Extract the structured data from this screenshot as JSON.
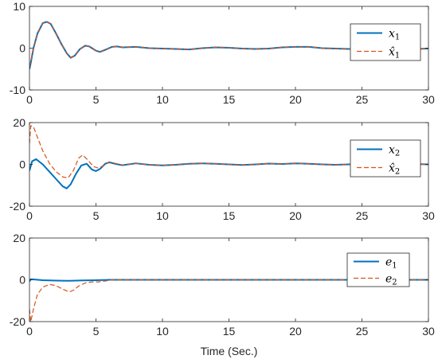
{
  "chart_data": [
    {
      "type": "line",
      "xlim": [
        0,
        30
      ],
      "ylim": [
        -10,
        10
      ],
      "yticks": [
        -10,
        0,
        10
      ],
      "xticks": [
        0,
        5,
        10,
        15,
        20,
        25,
        30
      ],
      "legend_placement": "right",
      "series": [
        {
          "name": "x1",
          "color": "#0072BD",
          "style": "solid",
          "x": [
            0,
            0.1,
            0.3,
            0.6,
            1.0,
            1.3,
            1.6,
            2.0,
            2.4,
            2.8,
            3.1,
            3.4,
            3.8,
            4.2,
            4.5,
            5.0,
            5.3,
            5.7,
            6.2,
            6.6,
            7.0,
            8.0,
            9.0,
            10.0,
            11.0,
            12.0,
            13.0,
            14.0,
            15.0,
            16.0,
            17.0,
            18.0,
            19.0,
            20.0,
            21.0,
            22.0,
            23.0,
            24.0,
            25.0,
            26.0,
            27.0,
            28.0,
            29.0,
            30.0
          ],
          "y": [
            -5,
            -3.5,
            0,
            3.5,
            6,
            6.3,
            5.8,
            3.5,
            1.0,
            -1.2,
            -2.3,
            -1.8,
            -0.2,
            0.6,
            0.4,
            -0.6,
            -0.9,
            -0.4,
            0.3,
            0.4,
            0.2,
            0.3,
            0.0,
            -0.1,
            -0.2,
            -0.3,
            0.0,
            0.2,
            0.1,
            -0.1,
            -0.2,
            -0.1,
            0.2,
            0.3,
            0.3,
            0.0,
            -0.1,
            -0.2,
            -0.2,
            0.0,
            0.1,
            -0.1,
            -0.2,
            -0.1
          ]
        },
        {
          "name": "x̂1",
          "color": "#D95319",
          "style": "dashed",
          "x": [
            0,
            0.1,
            0.3,
            0.6,
            1.0,
            1.3,
            1.6,
            2.0,
            2.4,
            2.8,
            3.1,
            3.4,
            3.8,
            4.2,
            4.5,
            5.0,
            5.3,
            5.7,
            6.2,
            6.6,
            7.0,
            8.0,
            9.0,
            10.0,
            11.0,
            12.0,
            13.0,
            14.0,
            15.0,
            16.0,
            17.0,
            18.0,
            19.0,
            20.0,
            21.0,
            22.0,
            23.0,
            24.0,
            25.0,
            26.0,
            27.0,
            28.0,
            29.0,
            30.0
          ],
          "y": [
            -4.5,
            -3.2,
            0.2,
            3.6,
            6,
            6.3,
            5.8,
            3.5,
            1.0,
            -1.2,
            -2.3,
            -1.8,
            -0.2,
            0.6,
            0.4,
            -0.6,
            -0.9,
            -0.4,
            0.3,
            0.4,
            0.2,
            0.3,
            0.0,
            -0.1,
            -0.2,
            -0.3,
            0.0,
            0.2,
            0.1,
            -0.1,
            -0.2,
            -0.1,
            0.2,
            0.3,
            0.3,
            0.0,
            -0.1,
            -0.2,
            -0.2,
            0.0,
            0.1,
            -0.1,
            -0.2,
            -0.1
          ]
        }
      ]
    },
    {
      "type": "line",
      "xlim": [
        0,
        30
      ],
      "ylim": [
        -20,
        20
      ],
      "yticks": [
        -20,
        0,
        20
      ],
      "xticks": [
        0,
        5,
        10,
        15,
        20,
        25,
        30
      ],
      "legend_placement": "right",
      "series": [
        {
          "name": "x2",
          "color": "#0072BD",
          "style": "solid",
          "x": [
            0,
            0.2,
            0.5,
            1.0,
            1.5,
            2.0,
            2.5,
            2.8,
            3.1,
            3.5,
            3.9,
            4.3,
            4.7,
            5.0,
            5.3,
            5.7,
            6.0,
            6.5,
            7.0,
            8.0,
            9.0,
            10.0,
            11.0,
            12.0,
            13.0,
            14.0,
            15.0,
            16.0,
            17.0,
            18.0,
            19.0,
            20.0,
            21.0,
            22.0,
            23.0,
            24.0,
            25.0,
            26.0,
            27.0,
            28.0,
            29.0,
            30.0
          ],
          "y": [
            -3,
            1.5,
            2.5,
            0,
            -3.5,
            -7,
            -10.5,
            -11.5,
            -9.5,
            -4.5,
            -0.5,
            0.3,
            -2.5,
            -3.2,
            -2.2,
            0.3,
            1.0,
            0.2,
            -0.4,
            0.5,
            -0.2,
            -0.5,
            -0.2,
            0.3,
            0.5,
            0.3,
            0.0,
            -0.3,
            0.0,
            0.4,
            0.2,
            0.5,
            0.3,
            0.0,
            -0.2,
            0.0,
            0.3,
            0.0,
            -0.2,
            0.0,
            0.2,
            0.0
          ]
        },
        {
          "name": "x̂2",
          "color": "#D95319",
          "style": "dashed",
          "x": [
            0,
            0.1,
            0.3,
            0.6,
            1.0,
            1.5,
            2.0,
            2.5,
            2.9,
            3.3,
            3.7,
            4.0,
            4.4,
            4.8,
            5.2,
            5.6,
            6.0,
            6.5,
            7.0,
            8.0,
            9.0,
            10.0,
            11.0,
            12.0,
            13.0,
            14.0,
            15.0,
            16.0,
            17.0,
            18.0,
            19.0,
            20.0,
            21.0,
            22.0,
            23.0,
            24.0,
            25.0,
            26.0,
            27.0,
            28.0,
            29.0,
            30.0
          ],
          "y": [
            10,
            18.5,
            18,
            13,
            6.5,
            0.5,
            -3.5,
            -6.0,
            -6.5,
            -3.0,
            3.0,
            4.5,
            2.0,
            -1.0,
            -1.8,
            -0.5,
            1.2,
            0.4,
            -0.3,
            0.5,
            -0.2,
            -0.5,
            -0.2,
            0.3,
            0.5,
            0.3,
            0.0,
            -0.3,
            0.0,
            0.4,
            0.2,
            0.5,
            0.3,
            0.0,
            -0.2,
            0.0,
            0.3,
            0.0,
            -0.2,
            0.0,
            0.2,
            0.0
          ]
        }
      ]
    },
    {
      "type": "line",
      "xlim": [
        0,
        30
      ],
      "ylim": [
        -20,
        20
      ],
      "yticks": [
        -20,
        0,
        20
      ],
      "xticks": [
        0,
        5,
        10,
        15,
        20,
        25,
        30
      ],
      "xlabel": "Time (Sec.)",
      "legend_placement": "top-right",
      "series": [
        {
          "name": "e1",
          "color": "#0072BD",
          "style": "solid",
          "x": [
            0,
            0.1,
            0.3,
            1.0,
            2.0,
            3.0,
            4.0,
            5.0,
            6.0,
            7.0,
            10.0,
            15.0,
            20.0,
            25.0,
            30.0
          ],
          "y": [
            -0.8,
            0.3,
            0.2,
            -0.2,
            -0.4,
            -0.5,
            -0.3,
            -0.2,
            0.0,
            0.0,
            0.0,
            0.0,
            0.0,
            0.0,
            0.0
          ]
        },
        {
          "name": "e2",
          "color": "#D95319",
          "style": "dashed",
          "x": [
            0,
            0.1,
            0.3,
            0.6,
            1.0,
            1.5,
            2.0,
            2.5,
            3.0,
            3.3,
            3.7,
            4.2,
            4.7,
            5.2,
            5.7,
            6.2,
            7.0,
            10.0,
            15.0,
            20.0,
            25.0,
            30.0
          ],
          "y": [
            -14,
            -20,
            -14,
            -7,
            -3.5,
            -2.2,
            -2.8,
            -4.5,
            -5.8,
            -5.0,
            -3.0,
            -1.5,
            -1.0,
            -1.0,
            -0.6,
            0.0,
            0.0,
            0.0,
            0.0,
            0.0,
            0.0,
            0.0
          ]
        }
      ]
    }
  ]
}
